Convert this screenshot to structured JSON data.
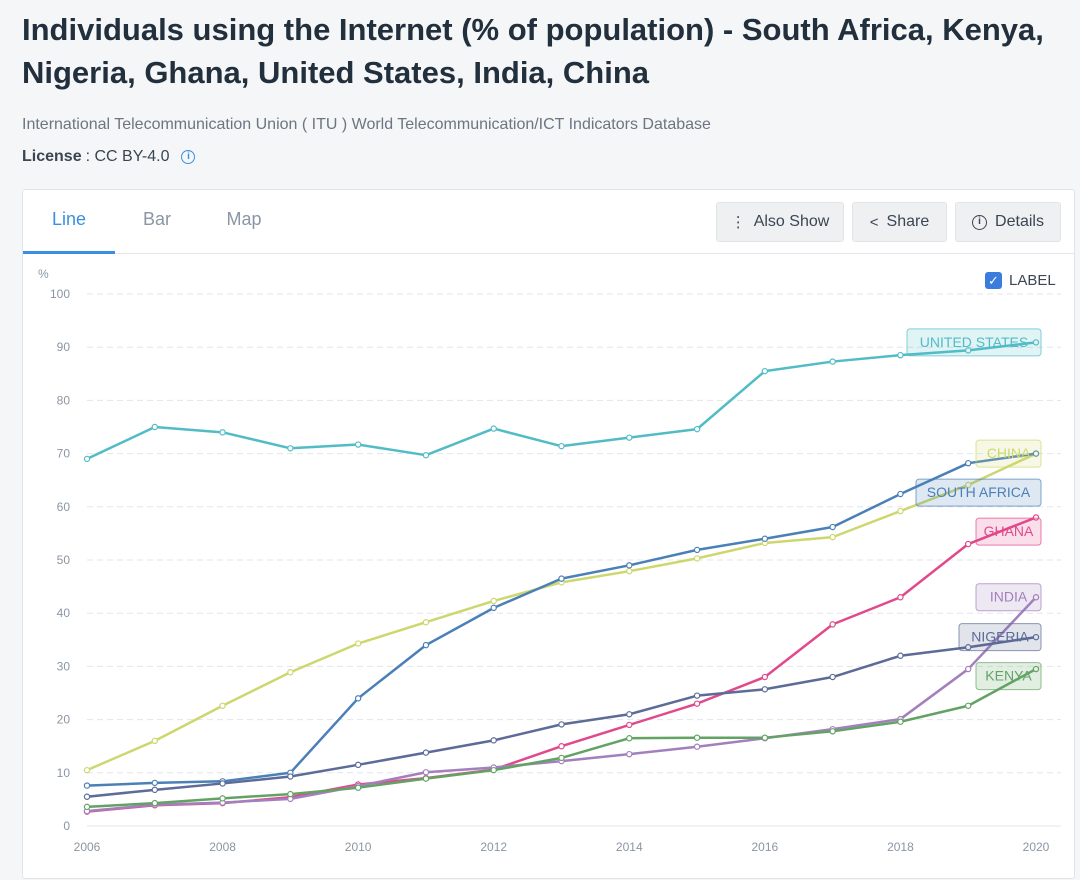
{
  "page": {
    "title": "Individuals using the Internet (% of population) - South Africa, Kenya, Nigeria, Ghana, United States, India, China",
    "source": "International Telecommunication Union ( ITU ) World Telecommunication/ICT Indicators Database",
    "license_key": "License",
    "license_value": ": CC BY-4.0",
    "info_icon_glyph": "i"
  },
  "tabs": {
    "line": "Line",
    "bar": "Bar",
    "map": "Map"
  },
  "toolbar": {
    "also_show": "Also Show",
    "share": "Share",
    "details": "Details",
    "also_show_icon": "⋮",
    "share_icon": "<",
    "details_icon": "i"
  },
  "label_toggle": {
    "text": "LABEL",
    "checked_glyph": "✓"
  },
  "colors": {
    "accent": "#3b8fe0",
    "grid": "#e3e6ea",
    "axis_text": "#8a96a3"
  },
  "chart_data": {
    "type": "line",
    "title": "Individuals using the Internet (% of population)",
    "ylabel": "%",
    "xlabel": "",
    "ylim": [
      0,
      100
    ],
    "xlim": [
      2006,
      2020
    ],
    "yticks": [
      0,
      10,
      20,
      30,
      40,
      50,
      60,
      70,
      80,
      90,
      100
    ],
    "xticks": [
      2006,
      2008,
      2010,
      2012,
      2014,
      2016,
      2018,
      2020
    ],
    "x": [
      2006,
      2007,
      2008,
      2009,
      2010,
      2011,
      2012,
      2013,
      2014,
      2015,
      2016,
      2017,
      2018,
      2019,
      2020
    ],
    "series": [
      {
        "name": "UNITED STATES",
        "color": "#52bcc6",
        "values": [
          69,
          75,
          74,
          71,
          71.7,
          69.7,
          74.7,
          71.4,
          73,
          74.6,
          85.5,
          87.3,
          88.5,
          89.4,
          90.9
        ]
      },
      {
        "name": "CHINA",
        "color": "#cdd76e",
        "values": [
          10.5,
          16,
          22.6,
          28.9,
          34.3,
          38.3,
          42.3,
          45.8,
          47.9,
          50.3,
          53.2,
          54.3,
          59.2,
          64.1,
          70
        ]
      },
      {
        "name": "SOUTH AFRICA",
        "color": "#4a80b7",
        "values": [
          7.6,
          8.1,
          8.4,
          10,
          24,
          34,
          41,
          46.5,
          49,
          51.9,
          54,
          56.2,
          62.4,
          68.2,
          70
        ]
      },
      {
        "name": "GHANA",
        "color": "#e1498b",
        "values": [
          2.7,
          3.9,
          4.3,
          5.4,
          7.8,
          9,
          10.6,
          15,
          19,
          23,
          28,
          37.9,
          43,
          53,
          58
        ]
      },
      {
        "name": "INDIA",
        "color": "#a37fbd",
        "values": [
          2.8,
          4,
          4.4,
          5.1,
          7.5,
          10.1,
          11,
          12.2,
          13.5,
          14.9,
          16.5,
          18.2,
          20.1,
          29.5,
          43
        ]
      },
      {
        "name": "NIGERIA",
        "color": "#5c6b97",
        "values": [
          5.5,
          6.8,
          8,
          9.3,
          11.5,
          13.8,
          16.1,
          19.1,
          21,
          24.5,
          25.7,
          28,
          32,
          33.6,
          35.5
        ]
      },
      {
        "name": "KENYA",
        "color": "#62a364",
        "values": [
          3.6,
          4.3,
          5.2,
          6,
          7.2,
          8.9,
          10.5,
          12.8,
          16.5,
          16.6,
          16.6,
          17.8,
          19.6,
          22.6,
          29.5
        ]
      }
    ]
  }
}
